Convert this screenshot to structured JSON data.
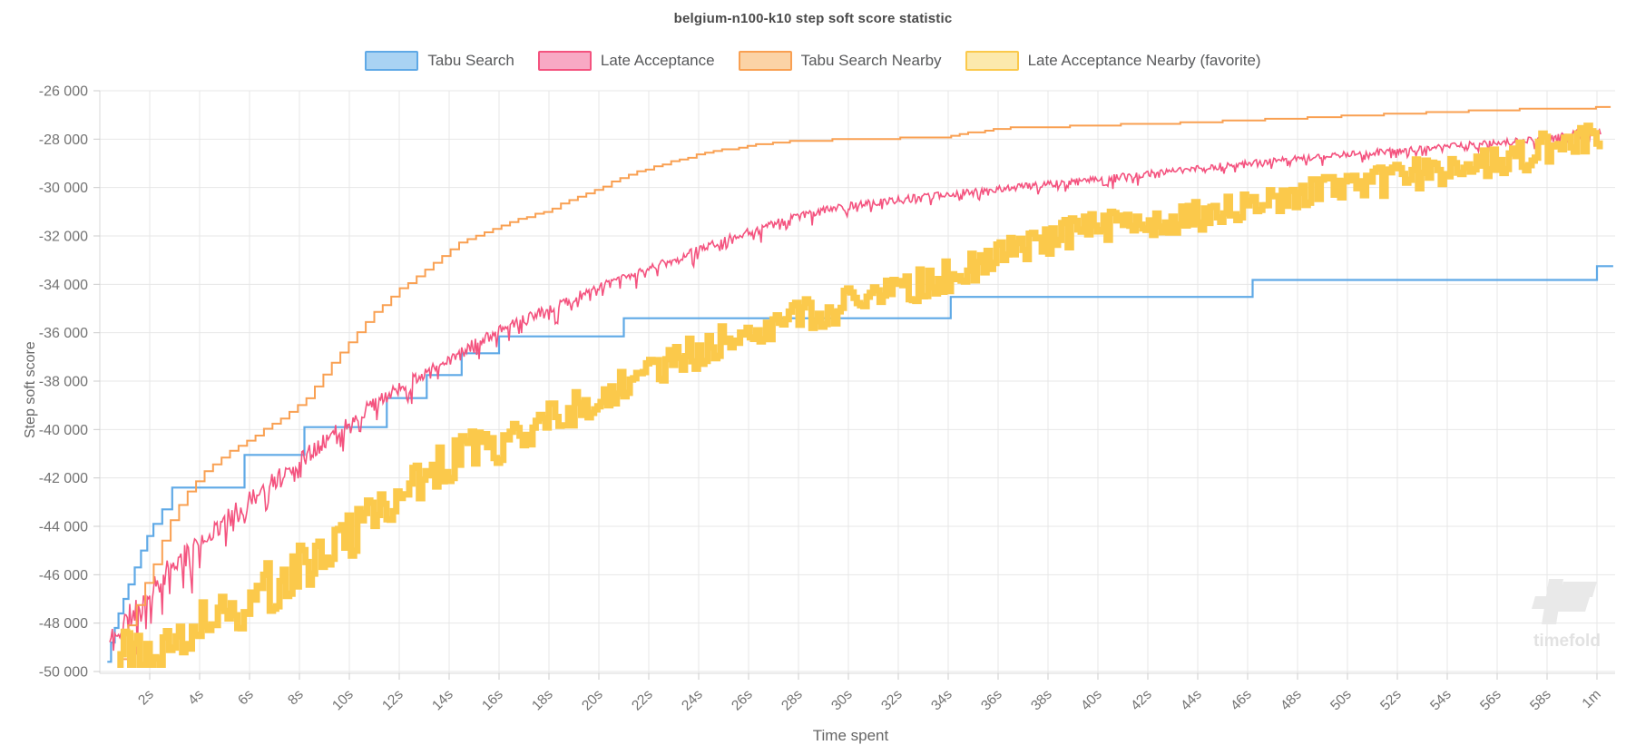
{
  "watermark": {
    "text": "timefold"
  },
  "chart_data": {
    "type": "line",
    "title": "belgium-n100-k10 step soft score statistic",
    "xlabel": "Time spent",
    "ylabel": "Step soft score",
    "x_unit": "seconds",
    "xlim": [
      0,
      60.7
    ],
    "ylim": [
      -50000,
      -26000
    ],
    "grid": true,
    "legend_position": "top",
    "x_ticks": [
      {
        "t": 2,
        "label": "2s"
      },
      {
        "t": 4,
        "label": "4s"
      },
      {
        "t": 6,
        "label": "6s"
      },
      {
        "t": 8,
        "label": "8s"
      },
      {
        "t": 10,
        "label": "10s"
      },
      {
        "t": 12,
        "label": "12s"
      },
      {
        "t": 14,
        "label": "14s"
      },
      {
        "t": 16,
        "label": "16s"
      },
      {
        "t": 18,
        "label": "18s"
      },
      {
        "t": 20,
        "label": "20s"
      },
      {
        "t": 22,
        "label": "22s"
      },
      {
        "t": 24,
        "label": "24s"
      },
      {
        "t": 26,
        "label": "26s"
      },
      {
        "t": 28,
        "label": "28s"
      },
      {
        "t": 30,
        "label": "30s"
      },
      {
        "t": 32,
        "label": "32s"
      },
      {
        "t": 34,
        "label": "34s"
      },
      {
        "t": 36,
        "label": "36s"
      },
      {
        "t": 38,
        "label": "38s"
      },
      {
        "t": 40,
        "label": "40s"
      },
      {
        "t": 42,
        "label": "42s"
      },
      {
        "t": 44,
        "label": "44s"
      },
      {
        "t": 46,
        "label": "46s"
      },
      {
        "t": 48,
        "label": "48s"
      },
      {
        "t": 50,
        "label": "50s"
      },
      {
        "t": 52,
        "label": "52s"
      },
      {
        "t": 54,
        "label": "54s"
      },
      {
        "t": 56,
        "label": "56s"
      },
      {
        "t": 58,
        "label": "58s"
      },
      {
        "t": 60,
        "label": "1m"
      }
    ],
    "y_ticks": [
      {
        "v": -26000,
        "label": "-26 000"
      },
      {
        "v": -28000,
        "label": "-28 000"
      },
      {
        "v": -30000,
        "label": "-30 000"
      },
      {
        "v": -32000,
        "label": "-32 000"
      },
      {
        "v": -34000,
        "label": "-34 000"
      },
      {
        "v": -36000,
        "label": "-36 000"
      },
      {
        "v": -38000,
        "label": "-38 000"
      },
      {
        "v": -40000,
        "label": "-40 000"
      },
      {
        "v": -42000,
        "label": "-42 000"
      },
      {
        "v": -44000,
        "label": "-44 000"
      },
      {
        "v": -46000,
        "label": "-46 000"
      },
      {
        "v": -48000,
        "label": "-48 000"
      },
      {
        "v": -50000,
        "label": "-50 000"
      }
    ],
    "series": [
      {
        "key": "tabu-search",
        "name": "Tabu Search",
        "color": "#5FA9E6",
        "legend_fill": "#A9D3F3",
        "render": {
          "style": "step",
          "width": 2.2
        },
        "points": [
          [
            0.3,
            -49600
          ],
          [
            0.45,
            -48800
          ],
          [
            0.6,
            -48200
          ],
          [
            0.75,
            -47600
          ],
          [
            0.95,
            -47000
          ],
          [
            1.15,
            -46400
          ],
          [
            1.4,
            -45700
          ],
          [
            1.65,
            -45000
          ],
          [
            1.9,
            -44400
          ],
          [
            2.15,
            -43900
          ],
          [
            2.5,
            -43300
          ],
          [
            2.9,
            -42400
          ],
          [
            5.8,
            -41050
          ],
          [
            8.2,
            -39900
          ],
          [
            11.5,
            -38700
          ],
          [
            13.1,
            -37750
          ],
          [
            14.5,
            -36850
          ],
          [
            16.0,
            -36150
          ],
          [
            21.0,
            -35400
          ],
          [
            34.1,
            -34520
          ],
          [
            46.2,
            -33820
          ],
          [
            60.0,
            -33250
          ],
          [
            60.65,
            -33250
          ]
        ]
      },
      {
        "key": "late-acceptance",
        "name": "Late Acceptance",
        "color": "#F4537F",
        "legend_fill": "#F8A9C4",
        "render": {
          "style": "noisy-line",
          "width": 1.6,
          "dt": 0.05,
          "seed": 11,
          "amp_base": 230,
          "amp_decay": 950,
          "tau": 10,
          "sym": 0.55,
          "spike_p": 0.2,
          "spike_k": 1.6,
          "t_end": 60.15,
          "floor": -49780
        },
        "points": [
          [
            0.4,
            -48800
          ],
          [
            0.9,
            -48200
          ],
          [
            1.6,
            -47200
          ],
          [
            2.4,
            -46200
          ],
          [
            3.3,
            -45300
          ],
          [
            4.4,
            -44300
          ],
          [
            5.5,
            -43400
          ],
          [
            6.9,
            -42200
          ],
          [
            8.0,
            -41300
          ],
          [
            8.7,
            -40700
          ],
          [
            10.5,
            -39300
          ],
          [
            12.4,
            -38000
          ],
          [
            14.2,
            -36900
          ],
          [
            16.0,
            -35950
          ],
          [
            17.8,
            -35100
          ],
          [
            19.6,
            -34300
          ],
          [
            21.5,
            -33550
          ],
          [
            23.3,
            -32850
          ],
          [
            25.1,
            -32150
          ],
          [
            27.3,
            -31400
          ],
          [
            29.1,
            -30900
          ],
          [
            30.9,
            -30650
          ],
          [
            32.4,
            -30450
          ],
          [
            34.2,
            -30250
          ],
          [
            36.0,
            -30050
          ],
          [
            38.2,
            -29850
          ],
          [
            40.0,
            -29650
          ],
          [
            41.8,
            -29450
          ],
          [
            43.6,
            -29250
          ],
          [
            45.5,
            -29050
          ],
          [
            47.3,
            -28880
          ],
          [
            49.1,
            -28700
          ],
          [
            50.9,
            -28560
          ],
          [
            52.7,
            -28430
          ],
          [
            54.5,
            -28260
          ],
          [
            56.4,
            -28120
          ],
          [
            58.2,
            -27940
          ],
          [
            59.4,
            -27650
          ],
          [
            60.15,
            -27700
          ]
        ]
      },
      {
        "key": "tabu-search-nearby",
        "name": "Tabu Search Nearby",
        "color": "#F9A052",
        "legend_fill": "#FBD3A6",
        "render": {
          "style": "step-fine",
          "width": 2,
          "dt": 0.34,
          "quant": 70,
          "t_end": 60.55
        },
        "points": [
          [
            0.8,
            -49500
          ],
          [
            1.0,
            -48600
          ],
          [
            1.2,
            -47900
          ],
          [
            1.45,
            -47300
          ],
          [
            1.7,
            -46600
          ],
          [
            2.0,
            -46000
          ],
          [
            2.3,
            -45200
          ],
          [
            2.55,
            -44400
          ],
          [
            2.9,
            -43600
          ],
          [
            3.3,
            -42900
          ],
          [
            3.8,
            -42200
          ],
          [
            4.3,
            -41600
          ],
          [
            5.3,
            -40800
          ],
          [
            6.3,
            -40200
          ],
          [
            7.3,
            -39500
          ],
          [
            8.2,
            -38800
          ],
          [
            9.2,
            -37350
          ],
          [
            10.1,
            -36250
          ],
          [
            11.0,
            -35150
          ],
          [
            12.0,
            -34200
          ],
          [
            13.3,
            -33200
          ],
          [
            14.5,
            -32200
          ],
          [
            16.2,
            -31500
          ],
          [
            17.8,
            -31000
          ],
          [
            19.9,
            -30050
          ],
          [
            21.5,
            -29350
          ],
          [
            22.8,
            -28950
          ],
          [
            24.4,
            -28520
          ],
          [
            26.2,
            -28250
          ],
          [
            28.0,
            -28060
          ],
          [
            33.8,
            -27920
          ],
          [
            35.9,
            -27560
          ],
          [
            40.0,
            -27430
          ],
          [
            43.3,
            -27330
          ],
          [
            46.9,
            -27180
          ],
          [
            49.8,
            -27050
          ],
          [
            52.4,
            -26940
          ],
          [
            54.2,
            -26860
          ],
          [
            56.5,
            -26780
          ],
          [
            58.4,
            -26740
          ],
          [
            60.55,
            -26680
          ]
        ]
      },
      {
        "key": "late-acceptance-nearby",
        "name": "Late Acceptance Nearby (favorite)",
        "color": "#FBC94B",
        "legend_fill": "#FCE9AC",
        "render": {
          "style": "noisy-band",
          "width": 7,
          "dt": 0.13,
          "seed": 77,
          "amp_base": 600,
          "amp_decay": 750,
          "tau": 13,
          "sym": 1.0,
          "spike_p": 0.05,
          "spike_k": 0.7,
          "t_end": 60.2,
          "floor": -49720
        },
        "points": [
          [
            0.7,
            -49300
          ],
          [
            1.5,
            -49000
          ],
          [
            2.4,
            -48700
          ],
          [
            3.3,
            -48300
          ],
          [
            4.4,
            -47800
          ],
          [
            5.1,
            -47500
          ],
          [
            6.2,
            -46900
          ],
          [
            6.9,
            -46400
          ],
          [
            8.0,
            -45700
          ],
          [
            8.7,
            -45200
          ],
          [
            10.2,
            -44200
          ],
          [
            11.5,
            -43200
          ],
          [
            12.4,
            -42500
          ],
          [
            13.5,
            -41500
          ],
          [
            14.9,
            -40900
          ],
          [
            16.4,
            -40500
          ],
          [
            17.5,
            -39900
          ],
          [
            18.9,
            -39200
          ],
          [
            20.0,
            -38700
          ],
          [
            21.8,
            -37900
          ],
          [
            23.6,
            -36950
          ],
          [
            25.5,
            -36150
          ],
          [
            27.3,
            -35450
          ],
          [
            29.1,
            -35050
          ],
          [
            30.9,
            -34550
          ],
          [
            32.7,
            -34050
          ],
          [
            34.5,
            -33450
          ],
          [
            36.4,
            -32750
          ],
          [
            38.2,
            -32050
          ],
          [
            40.0,
            -31650
          ],
          [
            41.8,
            -31450
          ],
          [
            43.6,
            -31250
          ],
          [
            45.5,
            -30850
          ],
          [
            47.3,
            -30450
          ],
          [
            49.1,
            -30150
          ],
          [
            50.9,
            -29850
          ],
          [
            52.7,
            -29450
          ],
          [
            54.5,
            -29150
          ],
          [
            56.4,
            -28750
          ],
          [
            58.2,
            -28250
          ],
          [
            59.6,
            -27900
          ],
          [
            60.2,
            -27950
          ]
        ]
      }
    ],
    "style": {
      "grid_color": "#e7e7e7",
      "axis_color": "#d9d9d9",
      "tick_color": "#cccccc",
      "tick_text_color": "#737373",
      "watermark_color": "#e9e9e9",
      "watermark_text_color": "#e2e2e2"
    }
  }
}
